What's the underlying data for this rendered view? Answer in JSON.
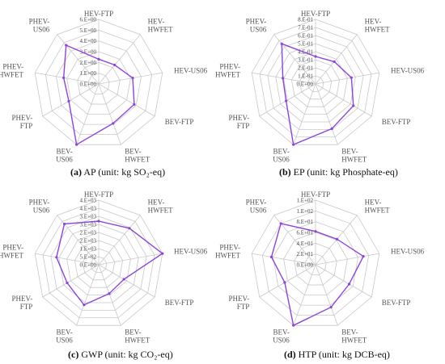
{
  "chart_data": [
    {
      "type": "radar",
      "label": "(a)",
      "caption": "AP (unit: kg SO₂-eq)",
      "categories": [
        "HEV-FTP",
        "HEV-HWFET",
        "HEV-US06",
        "BEV-FTP",
        "BEV-HWFET",
        "BEV-US06",
        "PHEV-FTP",
        "PHEV-HWFET",
        "PHEV-US06"
      ],
      "rlim": [
        0,
        6
      ],
      "tick_values": [
        0,
        1,
        2,
        3,
        4,
        5,
        6
      ],
      "tick_labels": [
        "0.E+00",
        "1.E+00",
        "2.E+00",
        "3.E+00",
        "4.E+00",
        "5.E+00",
        "6.E+00"
      ],
      "values": [
        2.3,
        2.3,
        3.2,
        3.8,
        3.9,
        6.0,
        3.2,
        3.3,
        4.7
      ],
      "color": "#8e44d9"
    },
    {
      "type": "radar",
      "label": "(b)",
      "caption": "EP (unit: kg Phosphate-eq)",
      "categories": [
        "HEV-FTP",
        "HEV-HWFET",
        "HEV-US06",
        "BEV-FTP",
        "BEV-HWFET",
        "BEV-US06",
        "PHEV-FTP",
        "PHEV-HWFET",
        "PHEV-US06"
      ],
      "rlim": [
        0,
        0.8
      ],
      "tick_values": [
        0,
        0.1,
        0.2,
        0.3,
        0.4,
        0.5,
        0.6,
        0.7,
        0.8
      ],
      "tick_labels": [
        "0.E+00",
        "1.E-01",
        "2.E-01",
        "3.E-01",
        "4.E-01",
        "5.E-01",
        "6.E-01",
        "7.E-01",
        "8.E-01"
      ],
      "values": [
        0.34,
        0.36,
        0.45,
        0.54,
        0.59,
        0.8,
        0.42,
        0.41,
        0.65
      ],
      "color": "#8e44d9"
    },
    {
      "type": "radar",
      "label": "(c)",
      "caption": "GWP (unit: kg CO₂-eq)",
      "categories": [
        "HEV-FTP",
        "HEV-HWFET",
        "HEV-US06",
        "BEV-FTP",
        "BEV-HWFET",
        "BEV-US06",
        "PHEV-FTP",
        "PHEV-HWFET",
        "PHEV-US06"
      ],
      "rlim": [
        0,
        4000
      ],
      "tick_values": [
        0,
        500,
        1000,
        1500,
        2000,
        2500,
        3000,
        3500,
        4000
      ],
      "tick_labels": [
        "0.E+00",
        "5.E+02",
        "1.E+03",
        "2.E+03",
        "2.E+03",
        "3.E+03",
        "3.E+03",
        "4.E+03",
        "4.E+03"
      ],
      "values": [
        2700,
        2950,
        4000,
        1800,
        1900,
        2650,
        2250,
        2650,
        3300
      ],
      "color": "#8e44d9"
    },
    {
      "type": "radar",
      "label": "(d)",
      "caption": "HTP (unit: kg DCB-eq)",
      "categories": [
        "HEV-FTP",
        "HEV-HWFET",
        "HEV-US06",
        "BEV-FTP",
        "BEV-HWFET",
        "BEV-US06",
        "PHEV-FTP",
        "PHEV-HWFET",
        "PHEV-US06"
      ],
      "rlim": [
        0,
        120
      ],
      "tick_values": [
        0,
        20,
        40,
        60,
        80,
        100,
        120
      ],
      "tick_labels": [
        "0.E+00",
        "2.E+01",
        "4.E+01",
        "6.E+01",
        "8.E+01",
        "1.E+02",
        "1.E+02"
      ],
      "values": [
        62,
        62,
        90,
        72,
        84,
        120,
        66,
        83,
        100
      ],
      "color": "#8e44d9"
    }
  ]
}
